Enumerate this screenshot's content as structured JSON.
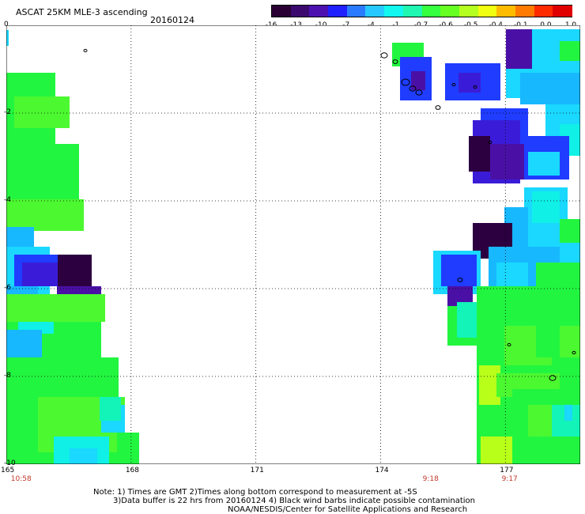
{
  "header": {
    "title": "ASCAT 25KM MLE-3 ascending",
    "date": "20160124"
  },
  "colorbar": {
    "colors": [
      "#2a0033",
      "#3b0a6e",
      "#4b12b0",
      "#2020ff",
      "#2a7bff",
      "#26c8ff",
      "#12f7ee",
      "#20f7b0",
      "#36ff40",
      "#66ff22",
      "#b4ff20",
      "#f0ff10",
      "#ffbb00",
      "#ff7a00",
      "#ff2b00",
      "#e00000"
    ],
    "ticks": [
      "-16",
      "-13",
      "-10",
      "-7",
      "-4",
      "-1",
      "-0.7",
      "-0.6",
      "-0.5",
      "-0.4",
      "-0.1",
      "0.0",
      "1.0"
    ]
  },
  "axes": {
    "x_ticks": [
      "165",
      "168",
      "171",
      "174",
      "177"
    ],
    "y_ticks": [
      "0",
      "-2",
      "-4",
      "-6",
      "-8",
      "-10"
    ],
    "xlim": [
      165,
      178.8
    ],
    "ylim": [
      -10,
      0
    ],
    "grid": true
  },
  "times": [
    {
      "label": "10:58",
      "lon": 165.3
    },
    {
      "label": "9:18",
      "lon": 175.2
    },
    {
      "label": "9:17",
      "lon": 177.1
    }
  ],
  "notes": {
    "line1": "Note: 1) Times are GMT 2)Times along bottom correspond to measurement at -5S",
    "line2": "3)Data buffer is 22 hrs from 20160124 4) Black wind barbs indicate possible contamination",
    "line3": "NOAA/NESDIS/Center for Satellite Applications and Research"
  }
}
